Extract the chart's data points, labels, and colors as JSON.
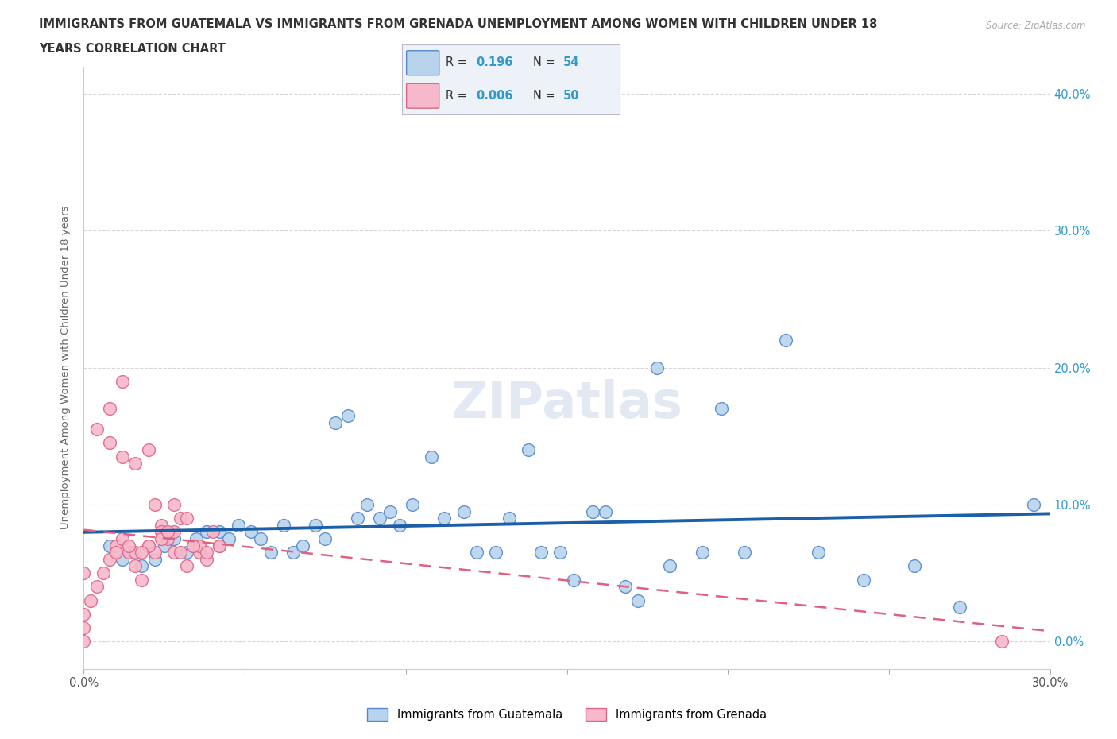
{
  "title_line1": "IMMIGRANTS FROM GUATEMALA VS IMMIGRANTS FROM GRENADA UNEMPLOYMENT AMONG WOMEN WITH CHILDREN UNDER 18",
  "title_line2": "YEARS CORRELATION CHART",
  "source": "Source: ZipAtlas.com",
  "ylabel": "Unemployment Among Women with Children Under 18 years",
  "xlim": [
    0.0,
    0.3
  ],
  "ylim": [
    -0.02,
    0.42
  ],
  "xticks": [
    0.0,
    0.05,
    0.1,
    0.15,
    0.2,
    0.25,
    0.3
  ],
  "yticks": [
    0.0,
    0.1,
    0.2,
    0.3,
    0.4
  ],
  "guatemala_color": "#b8d4ed",
  "grenada_color": "#f7b8cb",
  "guatemala_edge": "#5588cc",
  "grenada_edge": "#dd6688",
  "trend_guatemala_color": "#1a5fa8",
  "trend_grenada_color": "#e06080",
  "R_guatemala": 0.196,
  "N_guatemala": 54,
  "R_grenada": 0.006,
  "N_grenada": 50,
  "guatemala_x": [
    0.008,
    0.012,
    0.015,
    0.018,
    0.022,
    0.025,
    0.028,
    0.032,
    0.035,
    0.038,
    0.042,
    0.045,
    0.048,
    0.052,
    0.055,
    0.058,
    0.062,
    0.065,
    0.068,
    0.072,
    0.075,
    0.078,
    0.082,
    0.085,
    0.088,
    0.092,
    0.095,
    0.098,
    0.102,
    0.108,
    0.112,
    0.118,
    0.122,
    0.128,
    0.132,
    0.138,
    0.142,
    0.148,
    0.152,
    0.158,
    0.162,
    0.168,
    0.172,
    0.178,
    0.182,
    0.192,
    0.198,
    0.205,
    0.218,
    0.228,
    0.242,
    0.258,
    0.272,
    0.295
  ],
  "guatemala_y": [
    0.07,
    0.06,
    0.065,
    0.055,
    0.06,
    0.07,
    0.075,
    0.065,
    0.075,
    0.08,
    0.08,
    0.075,
    0.085,
    0.08,
    0.075,
    0.065,
    0.085,
    0.065,
    0.07,
    0.085,
    0.075,
    0.16,
    0.165,
    0.09,
    0.1,
    0.09,
    0.095,
    0.085,
    0.1,
    0.135,
    0.09,
    0.095,
    0.065,
    0.065,
    0.09,
    0.14,
    0.065,
    0.065,
    0.045,
    0.095,
    0.095,
    0.04,
    0.03,
    0.2,
    0.055,
    0.065,
    0.17,
    0.065,
    0.22,
    0.065,
    0.045,
    0.055,
    0.025,
    0.1
  ],
  "grenada_x": [
    0.0,
    0.0,
    0.0,
    0.0,
    0.002,
    0.004,
    0.006,
    0.008,
    0.01,
    0.012,
    0.014,
    0.016,
    0.018,
    0.02,
    0.022,
    0.024,
    0.026,
    0.028,
    0.03,
    0.032,
    0.034,
    0.036,
    0.038,
    0.04,
    0.042,
    0.004,
    0.008,
    0.012,
    0.016,
    0.02,
    0.024,
    0.028,
    0.032,
    0.036,
    0.008,
    0.012,
    0.016,
    0.02,
    0.024,
    0.028,
    0.01,
    0.014,
    0.018,
    0.022,
    0.026,
    0.03,
    0.034,
    0.038,
    0.042,
    0.285
  ],
  "grenada_y": [
    0.0,
    0.01,
    0.02,
    0.05,
    0.03,
    0.04,
    0.05,
    0.06,
    0.07,
    0.075,
    0.065,
    0.055,
    0.045,
    0.07,
    0.065,
    0.085,
    0.075,
    0.08,
    0.09,
    0.055,
    0.07,
    0.065,
    0.06,
    0.08,
    0.07,
    0.155,
    0.145,
    0.135,
    0.13,
    0.14,
    0.08,
    0.1,
    0.09,
    0.07,
    0.17,
    0.19,
    0.065,
    0.07,
    0.075,
    0.065,
    0.065,
    0.07,
    0.065,
    0.1,
    0.08,
    0.065,
    0.07,
    0.065,
    0.07,
    0.0
  ]
}
